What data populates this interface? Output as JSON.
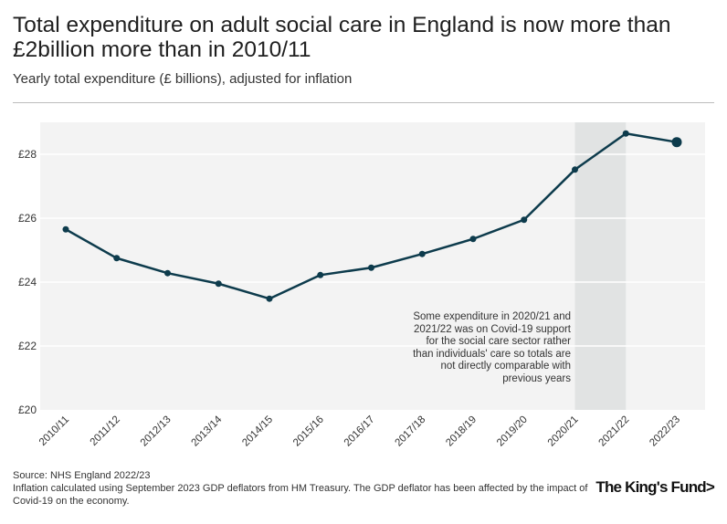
{
  "header": {
    "title": "Total expenditure on adult social care in England is now more than £2billion more than in 2010/11",
    "subtitle": "Yearly total expenditure (£ billions), adjusted for inflation"
  },
  "footer": {
    "source": "Source: NHS England 2022/23",
    "note": "Inflation calculated using September 2023 GDP deflators from HM Treasury. The GDP deflator has been affected by the impact of Covid-19 on the economy.",
    "logo_text": "The King's Fund>"
  },
  "chart_data": {
    "type": "line",
    "title": "Total expenditure on adult social care in England is now more than £2billion more than in 2010/11",
    "ylabel": "Yearly total expenditure (£ billions), adjusted for inflation",
    "xlabel": "",
    "categories": [
      "2010/11",
      "2011/12",
      "2012/13",
      "2013/14",
      "2014/15",
      "2015/16",
      "2016/17",
      "2017/18",
      "2018/19",
      "2019/20",
      "2020/21",
      "2021/22",
      "2022/23"
    ],
    "series": [
      {
        "name": "Total expenditure",
        "values": [
          25.65,
          24.75,
          24.28,
          23.95,
          23.48,
          24.22,
          24.45,
          24.88,
          25.35,
          25.95,
          27.52,
          28.65,
          28.38
        ]
      }
    ],
    "ylim": [
      20,
      29
    ],
    "yticks": [
      20,
      22,
      24,
      26,
      28
    ],
    "ytick_labels": [
      "£20",
      "£22",
      "£24",
      "£26",
      "£28"
    ],
    "grid": true,
    "shaded_range": [
      "2020/21",
      "2021/22"
    ],
    "annotation": "Some expenditure in 2020/21 and 2021/22 was on Covid-19 support for the social care sector rather than individuals' care so totals are not directly comparable with previous years",
    "colors": {
      "line": "#0d3b4c",
      "plot_bg": "#f3f3f3",
      "shade": "#e1e3e3",
      "grid": "#ffffff"
    }
  }
}
